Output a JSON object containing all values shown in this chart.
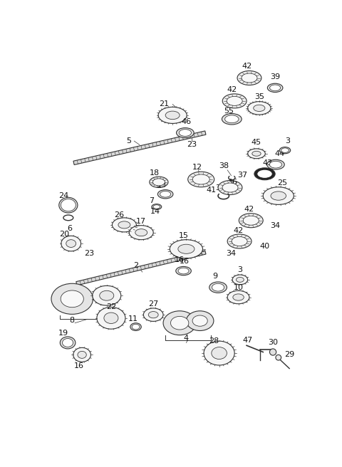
{
  "bg_color": "#ffffff",
  "line_color": "#333333",
  "label_color": "#111111",
  "lw": 0.8,
  "fig_w": 4.8,
  "fig_h": 6.56,
  "dpi": 100
}
